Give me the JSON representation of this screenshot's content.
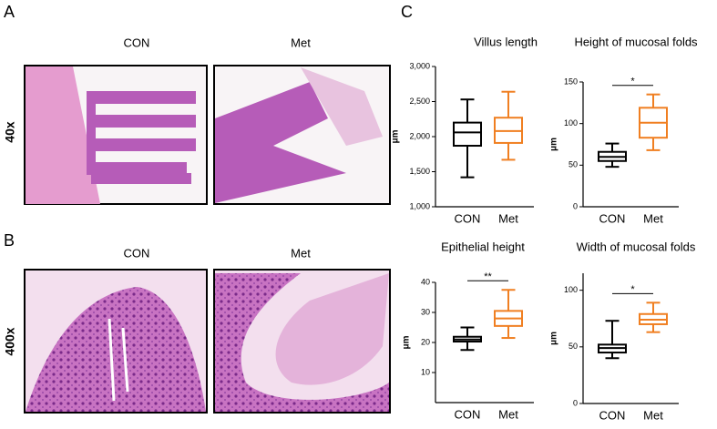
{
  "panels": {
    "a": "A",
    "b": "B",
    "c": "C"
  },
  "images": {
    "col_con": "CON",
    "col_met": "Met",
    "row_a": "40x",
    "row_b": "400x"
  },
  "chart_data": [
    {
      "type": "box",
      "title": "Villus length",
      "ylabel": "μm",
      "categories": [
        "CON",
        "Met"
      ],
      "colors": [
        "#000000",
        "#f07f21"
      ],
      "boxes": [
        {
          "min": 1420,
          "q1": 1870,
          "median": 2060,
          "q3": 2200,
          "max": 2530
        },
        {
          "min": 1670,
          "q1": 1910,
          "median": 2080,
          "q3": 2270,
          "max": 2640
        }
      ],
      "ylim": [
        1000,
        3000
      ],
      "yticks": [
        {
          "value": 1000,
          "label": "1,000"
        },
        {
          "value": 1500,
          "label": "1,500"
        },
        {
          "value": 2000,
          "label": "2,000"
        },
        {
          "value": 2500,
          "label": "2,500"
        },
        {
          "value": 3000,
          "label": "3,000"
        }
      ]
    },
    {
      "type": "box",
      "title": "Height of mucosal folds",
      "ylabel": "μm",
      "categories": [
        "CON",
        "Met"
      ],
      "colors": [
        "#000000",
        "#f07f21"
      ],
      "boxes": [
        {
          "min": 48,
          "q1": 55,
          "median": 60,
          "q3": 66,
          "max": 76
        },
        {
          "min": 68,
          "q1": 83,
          "median": 101,
          "q3": 119,
          "max": 135
        }
      ],
      "ylim": [
        0,
        150
      ],
      "yticks": [
        0,
        50,
        100,
        150
      ],
      "significance": "*"
    },
    {
      "type": "box",
      "title": "Epithelial height",
      "ylabel": "μm",
      "categories": [
        "CON",
        "Met"
      ],
      "colors": [
        "#000000",
        "#f07f21"
      ],
      "boxes": [
        {
          "min": 17.5,
          "q1": 20.3,
          "median": 21,
          "q3": 21.9,
          "max": 25
        },
        {
          "min": 21.5,
          "q1": 25.5,
          "median": 28,
          "q3": 30.5,
          "max": 37.5
        }
      ],
      "ylim": [
        0,
        40
      ],
      "yticks": [
        10,
        20,
        30,
        40
      ],
      "significance": "**"
    },
    {
      "type": "box",
      "title": "Width of mucosal folds",
      "ylabel": "μm",
      "categories": [
        "CON",
        "Met"
      ],
      "colors": [
        "#000000",
        "#f07f21"
      ],
      "boxes": [
        {
          "min": 40,
          "q1": 45,
          "median": 49,
          "q3": 52,
          "max": 73
        },
        {
          "min": 63,
          "q1": 70,
          "median": 74,
          "q3": 79,
          "max": 89
        }
      ],
      "ylim": [
        0,
        115
      ],
      "yticks": [
        0,
        50,
        100
      ],
      "significance": "*"
    }
  ]
}
